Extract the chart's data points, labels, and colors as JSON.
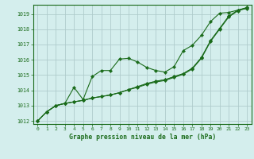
{
  "title": "Graphe pression niveau de la mer (hPa)",
  "background_color": "#d4eeed",
  "grid_color": "#b0cccc",
  "line_color": "#1a6b1a",
  "marker_color": "#1a6b1a",
  "xlim": [
    -0.5,
    23.5
  ],
  "ylim": [
    1011.8,
    1019.6
  ],
  "yticks": [
    1012,
    1013,
    1014,
    1015,
    1016,
    1017,
    1018,
    1019
  ],
  "xticks": [
    0,
    1,
    2,
    3,
    4,
    5,
    6,
    7,
    8,
    9,
    10,
    11,
    12,
    13,
    14,
    15,
    16,
    17,
    18,
    19,
    20,
    21,
    22,
    23
  ],
  "series1": [
    1012.0,
    1012.6,
    1013.0,
    1013.15,
    1014.2,
    1013.4,
    1014.9,
    1015.3,
    1015.3,
    1016.05,
    1016.1,
    1015.85,
    1015.5,
    1015.3,
    1015.2,
    1015.55,
    1016.6,
    1016.95,
    1017.6,
    1018.5,
    1019.05,
    1019.1,
    1019.25,
    1019.35
  ],
  "series2": [
    1012.0,
    1012.6,
    1013.0,
    1013.15,
    1013.25,
    1013.35,
    1013.5,
    1013.6,
    1013.7,
    1013.85,
    1014.05,
    1014.2,
    1014.4,
    1014.55,
    1014.65,
    1014.85,
    1015.05,
    1015.4,
    1016.1,
    1017.2,
    1018.0,
    1018.8,
    1019.2,
    1019.4
  ],
  "series3": [
    1012.0,
    1012.6,
    1013.0,
    1013.15,
    1013.25,
    1013.35,
    1013.5,
    1013.6,
    1013.7,
    1013.85,
    1014.05,
    1014.25,
    1014.45,
    1014.6,
    1014.7,
    1014.9,
    1015.1,
    1015.45,
    1016.15,
    1017.25,
    1018.05,
    1018.85,
    1019.25,
    1019.42
  ],
  "series4": [
    1012.0,
    1012.6,
    1013.0,
    1013.15,
    1013.25,
    1013.35,
    1013.5,
    1013.6,
    1013.7,
    1013.85,
    1014.05,
    1014.25,
    1014.45,
    1014.6,
    1014.7,
    1014.9,
    1015.1,
    1015.45,
    1016.15,
    1017.25,
    1018.05,
    1018.85,
    1019.25,
    1019.42
  ]
}
